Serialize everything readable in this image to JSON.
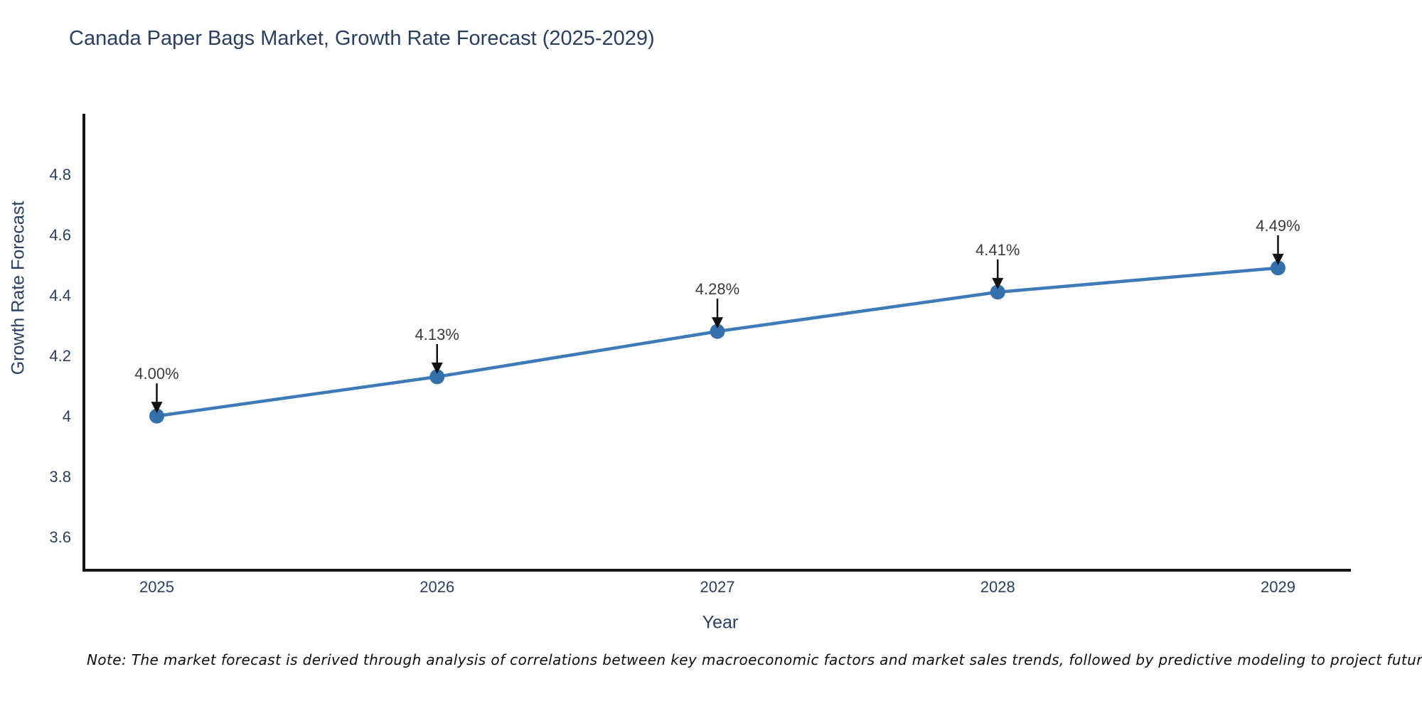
{
  "chart_data": {
    "type": "line",
    "title": "Canada Paper Bags Market, Growth Rate Forecast (2025-2029)",
    "xlabel": "Year",
    "ylabel": "Growth Rate Forecast",
    "x": [
      2025,
      2026,
      2027,
      2028,
      2029
    ],
    "y": [
      4.0,
      4.13,
      4.28,
      4.41,
      4.49
    ],
    "point_labels": [
      "4.00%",
      "4.13%",
      "4.28%",
      "4.41%",
      "4.49%"
    ],
    "x_tick_labels": [
      "2025",
      "2026",
      "2027",
      "2028",
      "2029"
    ],
    "y_ticks": [
      3.6,
      3.8,
      4.0,
      4.2,
      4.4,
      4.6,
      4.8
    ],
    "y_tick_labels": [
      "3.6",
      "3.8",
      "4",
      "4.2",
      "4.4",
      "4.6",
      "4.8"
    ],
    "xlim": [
      2024.74,
      2029.26
    ],
    "ylim": [
      3.49,
      5.0
    ],
    "grid": false,
    "legend": "none",
    "line_color": "#3d7ab8",
    "marker_color": "#3470ab",
    "arrow_color": "#121212",
    "axis_color": "#141414",
    "text_color": "#2a3f5f",
    "annotation_color": "#3b3b3b"
  },
  "note": "Note: The market forecast is derived through analysis of correlations between key macroeconomic factors and market sales trends, followed by predictive modeling to project future sales"
}
